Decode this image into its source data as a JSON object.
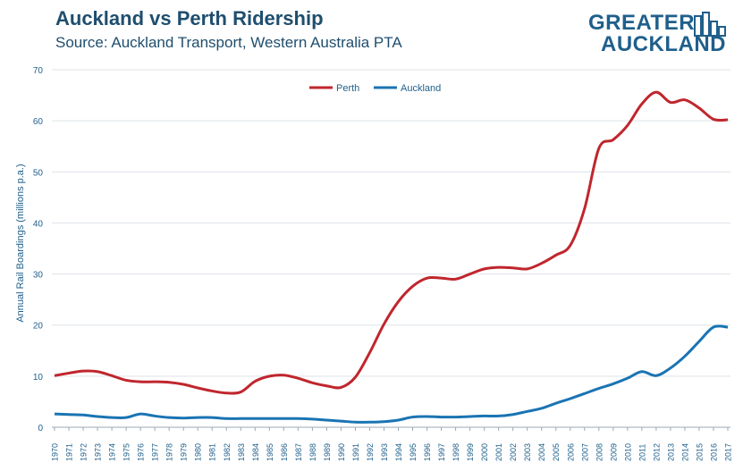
{
  "header": {
    "title": "Auckland vs Perth Ridership",
    "subtitle": "Source: Auckland Transport, Western Australia PTA"
  },
  "logo": {
    "line1": "GREATER",
    "line2": "AUCKLAND",
    "color": "#1f5f8b"
  },
  "chart_data": {
    "type": "line",
    "title": "Auckland vs Perth Ridership",
    "ylabel": "Annual Rail Boardings (millions p.a.)",
    "xlabel": "",
    "ylim": [
      0,
      70
    ],
    "yticks": [
      0,
      10,
      20,
      30,
      40,
      50,
      60,
      70
    ],
    "grid": "horizontal",
    "legend": "top-center",
    "x": [
      "1970",
      "1971",
      "1972",
      "1973",
      "1974",
      "1975",
      "1976",
      "1977",
      "1978",
      "1979",
      "1980",
      "1981",
      "1982",
      "1983",
      "1984",
      "1985",
      "1986",
      "1987",
      "1988",
      "1989",
      "1990",
      "1991",
      "1992",
      "1993",
      "1994",
      "1995",
      "1996",
      "1997",
      "1998",
      "1999",
      "2000",
      "2001",
      "2002",
      "2003",
      "2004",
      "2005",
      "2006",
      "2007",
      "2008",
      "2009",
      "2010",
      "2011",
      "2012",
      "2013",
      "2014",
      "2015",
      "2016",
      "2017"
    ],
    "series": [
      {
        "name": "Perth",
        "color": "#c0262d",
        "values": [
          10.1,
          10.6,
          11.0,
          10.9,
          10.1,
          9.2,
          8.9,
          8.9,
          8.8,
          8.4,
          7.7,
          7.1,
          6.7,
          6.9,
          9.0,
          10.0,
          10.2,
          9.6,
          8.7,
          8.1,
          7.8,
          9.8,
          14.6,
          20.2,
          24.6,
          27.6,
          29.2,
          29.2,
          29.0,
          30.0,
          31.0,
          31.3,
          31.2,
          31.0,
          32.1,
          33.7,
          35.6,
          42.8,
          54.6,
          56.3,
          59.1,
          63.3,
          65.6,
          63.6,
          64.1,
          62.5,
          60.3,
          60.2
        ]
      },
      {
        "name": "Auckland",
        "color": "#1a74b3",
        "values": [
          2.6,
          2.5,
          2.4,
          2.1,
          1.9,
          1.9,
          2.6,
          2.2,
          1.9,
          1.8,
          1.9,
          1.9,
          1.7,
          1.7,
          1.7,
          1.7,
          1.7,
          1.7,
          1.6,
          1.4,
          1.2,
          1.0,
          1.0,
          1.1,
          1.4,
          2.0,
          2.1,
          2.0,
          2.0,
          2.1,
          2.2,
          2.2,
          2.5,
          3.1,
          3.7,
          4.7,
          5.6,
          6.6,
          7.6,
          8.5,
          9.6,
          10.9,
          10.1,
          11.6,
          13.9,
          16.8,
          19.6,
          19.6
        ]
      }
    ]
  }
}
